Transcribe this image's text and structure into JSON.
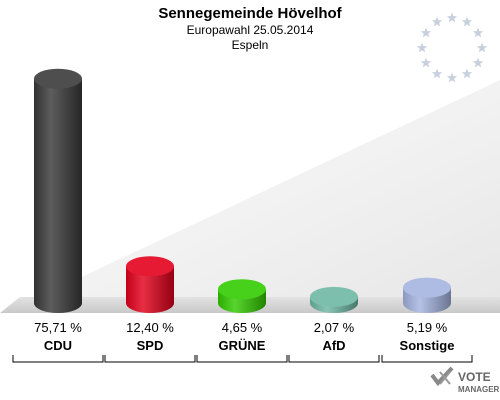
{
  "header": {
    "title": "Sennegemeinde Hövelhof",
    "subtitle": "Europawahl 25.05.2014",
    "district": "Espeln"
  },
  "logo": {
    "line1": "VOTE",
    "line2": "MANAGER"
  },
  "colors": {
    "background_floor": "#d8d8d8",
    "background_wall": "#eeeeee",
    "eu_stars": "#c8d0de"
  },
  "chart_data": {
    "type": "bar",
    "categories": [
      "CDU",
      "SPD",
      "GRÜNE",
      "AfD",
      "Sonstige"
    ],
    "values": [
      75.71,
      12.4,
      4.65,
      2.07,
      5.19
    ],
    "value_labels": [
      "75,71 %",
      "12,40 %",
      "4,65 %",
      "2,07 %",
      "5,19 %"
    ],
    "colors": [
      "#3a3a3a",
      "#e3001b",
      "#33cc00",
      "#6fb8a4",
      "#a5b4e0"
    ],
    "ylim": [
      0,
      80
    ],
    "grid": false,
    "legend": "none"
  }
}
